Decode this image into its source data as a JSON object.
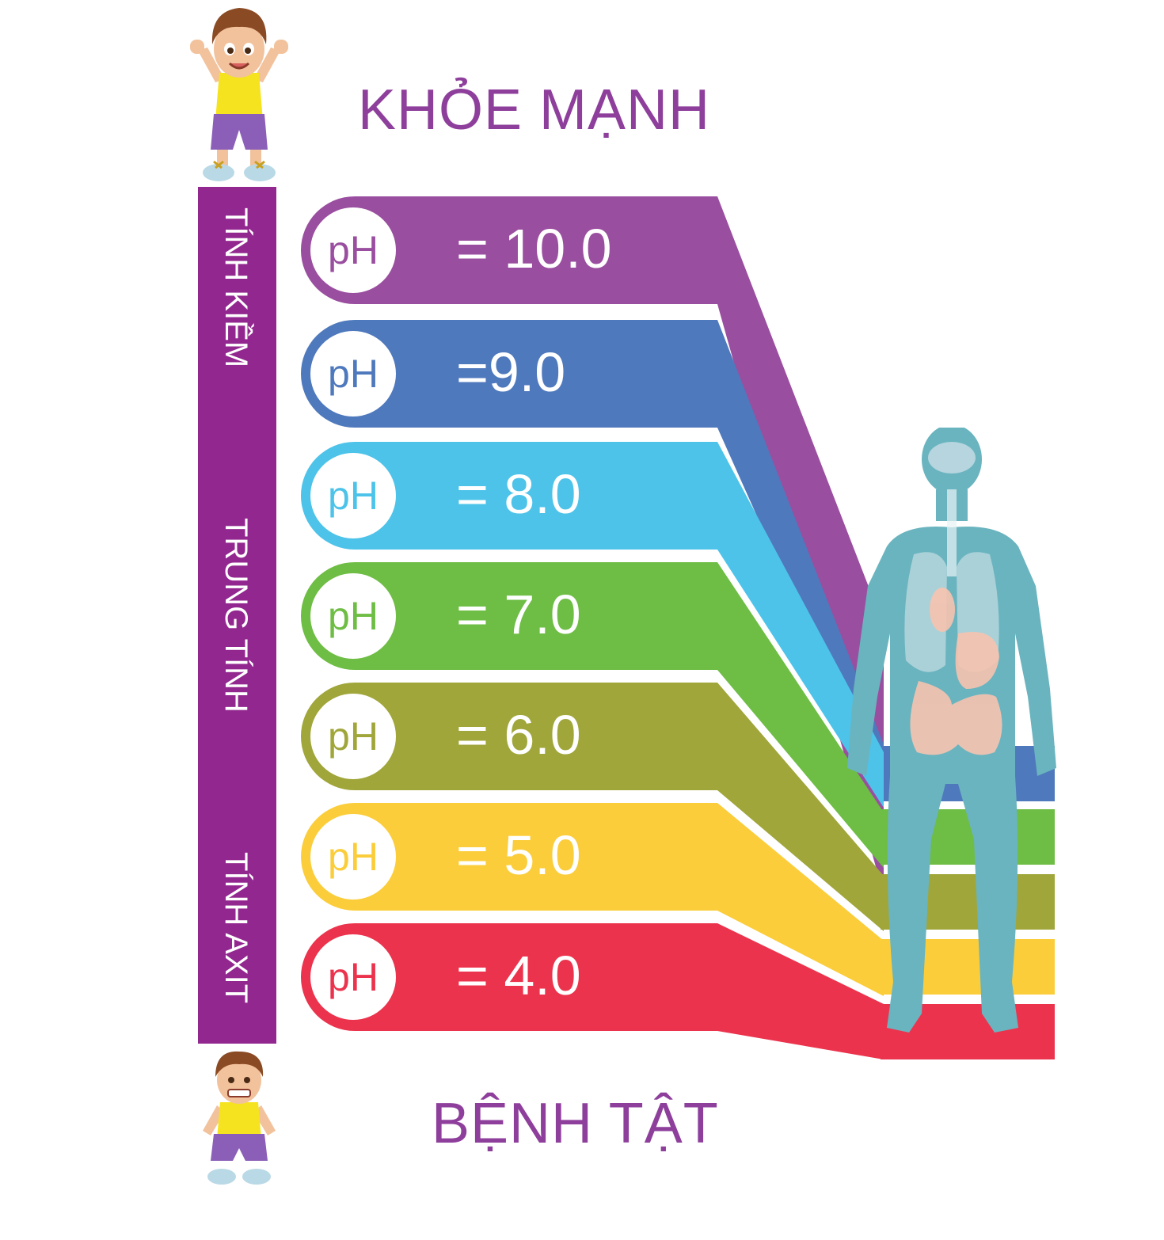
{
  "headings": {
    "top": "KHỎE MẠNH",
    "bottom": "BỆNH TẬT"
  },
  "scale": {
    "alkaline": "TÍNH KIỀM",
    "neutral": "TRUNG TÍNH",
    "acid": "TÍNH AXIT",
    "color": "#92278f"
  },
  "ph_prefix": "pH",
  "levels": [
    {
      "value": "= 10.0",
      "color": "#9a4e9f"
    },
    {
      "value": "=9.0",
      "color": "#4f79bd"
    },
    {
      "value": "= 8.0",
      "color": "#4dc3ea"
    },
    {
      "value": "= 7.0",
      "color": "#6ebd44"
    },
    {
      "value": "= 6.0",
      "color": "#a0a63a"
    },
    {
      "value": "= 5.0",
      "color": "#fbcd3a"
    },
    {
      "value": "= 4.0",
      "color": "#ec334d"
    }
  ],
  "body_color": "#6ab4bf"
}
